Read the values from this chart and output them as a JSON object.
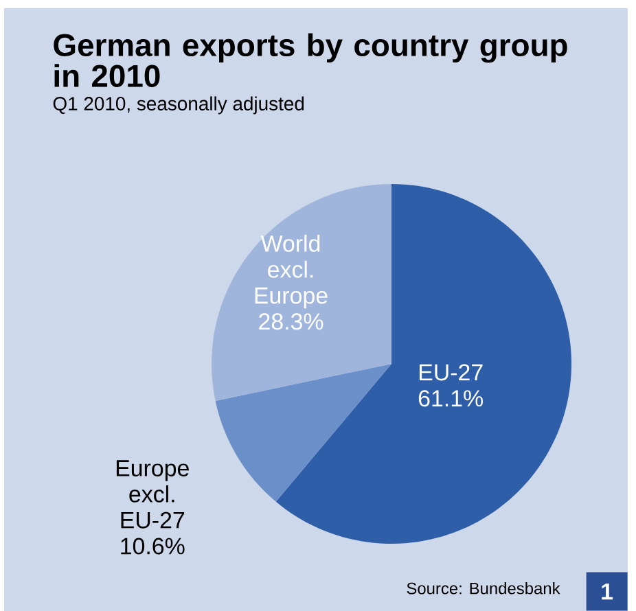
{
  "chart_data": {
    "type": "pie",
    "title": "German exports by country group in 2010",
    "subtitle": "Q1 2010, seasonally adjusted",
    "categories": [
      "EU-27",
      "Europe excl. EU-27",
      "World excl. Europe"
    ],
    "values": [
      61.1,
      10.6,
      28.3
    ],
    "value_labels": [
      "61.1%",
      "10.6%",
      "28.3%"
    ],
    "colors": [
      "#2f5ea8",
      "#6b8fc9",
      "#9fb5dc"
    ],
    "annotations": [
      "Source: Bundesbank",
      "1"
    ]
  }
}
